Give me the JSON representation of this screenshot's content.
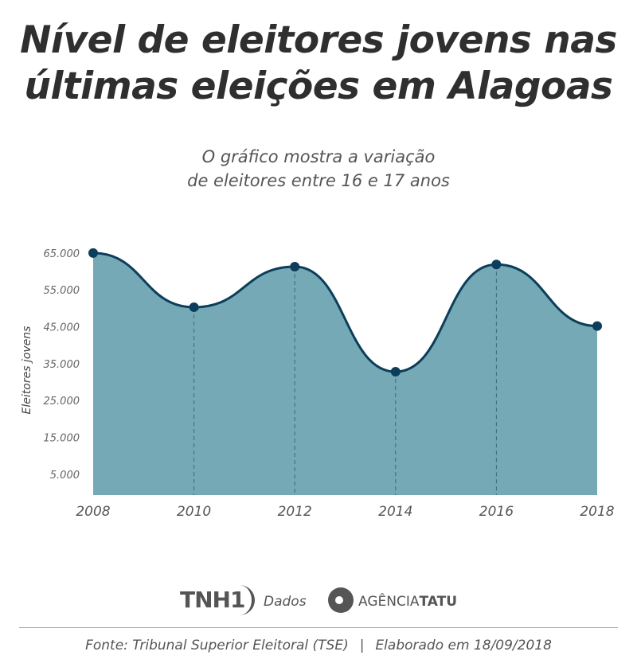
{
  "title_line1": "Nível de eleitores jovens nas",
  "title_line2": "últimas eleições em Alagoas",
  "subtitle_line1": "O gráfico mostra a variação",
  "subtitle_line2": "de eleitores entre 16 e 17 anos",
  "colors": {
    "fill": "#74a9b5",
    "line": "#0c3e5c",
    "text": "#555555"
  },
  "chart_data": {
    "type": "area",
    "title": "Nível de eleitores jovens nas últimas eleições em Alagoas",
    "xlabel": "",
    "ylabel": "Eleitores jovens",
    "x": [
      "2008",
      "2010",
      "2012",
      "2014",
      "2016",
      "2018"
    ],
    "values": [
      65000,
      50300,
      61300,
      32800,
      61900,
      45200
    ],
    "yticks": [
      "5.000",
      "15.000",
      "25.000",
      "35.000",
      "45.000",
      "55.000",
      "65.000"
    ],
    "ytick_values": [
      5000,
      15000,
      25000,
      35000,
      45000,
      55000,
      65000
    ],
    "ylim": [
      0,
      65000
    ],
    "grid": false
  },
  "logos": {
    "tnh": "TNH1",
    "dados": "Dados",
    "agencia": "AGÊNCIA",
    "tatu": "TATU"
  },
  "footer": {
    "source": "Fonte: Tribunal Superior Eleitoral (TSE)",
    "separator": "|",
    "date": "Elaborado em 18/09/2018"
  }
}
